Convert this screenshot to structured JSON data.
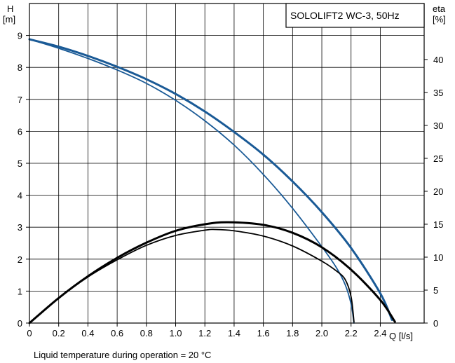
{
  "chart_data": {
    "type": "line",
    "title": "SOLOLIFT2 WC-3, 50Hz",
    "ylabel_left": {
      "name": "H",
      "unit": "[m]"
    },
    "ylabel_right": {
      "name": "eta",
      "unit": "[%]"
    },
    "xlabel": "Q [l/s]",
    "footnote": "Liquid temperature during operation = 20 °C",
    "xlim": [
      0,
      2.7
    ],
    "ylim_left": [
      0,
      10
    ],
    "ylim_right": [
      0,
      48.5
    ],
    "grid": true,
    "x_ticks": [
      {
        "v": 0,
        "label": "0"
      },
      {
        "v": 0.2,
        "label": "0.2"
      },
      {
        "v": 0.4,
        "label": "0.4"
      },
      {
        "v": 0.6,
        "label": "0.6"
      },
      {
        "v": 0.8,
        "label": "0.8"
      },
      {
        "v": 1.0,
        "label": "1.0"
      },
      {
        "v": 1.2,
        "label": "1.2"
      },
      {
        "v": 1.4,
        "label": "1.4"
      },
      {
        "v": 1.6,
        "label": "1.6"
      },
      {
        "v": 1.8,
        "label": "1.8"
      },
      {
        "v": 2.0,
        "label": "2.0"
      },
      {
        "v": 2.2,
        "label": "2.2"
      },
      {
        "v": 2.4,
        "label": "2.4"
      }
    ],
    "y_left_ticks": [
      {
        "v": 0,
        "label": "0"
      },
      {
        "v": 1,
        "label": "1"
      },
      {
        "v": 2,
        "label": "2"
      },
      {
        "v": 3,
        "label": "3"
      },
      {
        "v": 4,
        "label": "4"
      },
      {
        "v": 5,
        "label": "5"
      },
      {
        "v": 6,
        "label": "6"
      },
      {
        "v": 7,
        "label": "7"
      },
      {
        "v": 8,
        "label": "8"
      },
      {
        "v": 9,
        "label": "9"
      }
    ],
    "y_right_ticks": [
      {
        "v": 0,
        "label": "0"
      },
      {
        "v": 5,
        "label": "5"
      },
      {
        "v": 10,
        "label": "10"
      },
      {
        "v": 15,
        "label": "15"
      },
      {
        "v": 20,
        "label": "20"
      },
      {
        "v": 25,
        "label": "25"
      },
      {
        "v": 30,
        "label": "30"
      },
      {
        "v": 35,
        "label": "35"
      },
      {
        "v": 40,
        "label": "40"
      }
    ],
    "series": [
      {
        "axis": "left",
        "color": "#1a5a96",
        "width": 3,
        "x": [
          0,
          0.2,
          0.4,
          0.6,
          0.8,
          1.0,
          1.2,
          1.4,
          1.6,
          1.8,
          2.0,
          2.2,
          2.4,
          2.48
        ],
        "y": [
          8.88,
          8.65,
          8.36,
          8.02,
          7.63,
          7.17,
          6.62,
          5.98,
          5.27,
          4.43,
          3.47,
          2.35,
          0.93,
          0.1
        ]
      },
      {
        "axis": "left",
        "color": "#1a5a96",
        "width": 1.8,
        "x": [
          0,
          0.2,
          0.4,
          0.6,
          0.8,
          1.0,
          1.2,
          1.4,
          1.6,
          1.8,
          2.0,
          2.1,
          2.16,
          2.2,
          2.22
        ],
        "y": [
          8.88,
          8.6,
          8.28,
          7.92,
          7.5,
          6.97,
          6.33,
          5.57,
          4.65,
          3.59,
          2.39,
          1.73,
          1.2,
          0.6,
          0
        ]
      },
      {
        "axis": "right",
        "color": "#000000",
        "width": 3,
        "x": [
          0,
          0.2,
          0.4,
          0.6,
          0.8,
          1.0,
          1.2,
          1.36,
          1.6,
          1.8,
          2.0,
          2.2,
          2.4,
          2.5
        ],
        "y": [
          0,
          3.8,
          7.1,
          9.9,
          12.2,
          14.0,
          15.0,
          15.3,
          14.9,
          13.7,
          11.5,
          8.1,
          3.5,
          0.2
        ]
      },
      {
        "axis": "right",
        "color": "#000000",
        "width": 1.8,
        "x": [
          0,
          0.2,
          0.4,
          0.6,
          0.8,
          1.0,
          1.2,
          1.27,
          1.4,
          1.6,
          1.8,
          2.0,
          2.1,
          2.16,
          2.2,
          2.22
        ],
        "y": [
          0,
          3.8,
          7.0,
          9.6,
          11.8,
          13.3,
          14.1,
          14.2,
          14.0,
          13.2,
          11.7,
          9.4,
          7.9,
          6.6,
          4.0,
          0.2
        ]
      }
    ]
  }
}
